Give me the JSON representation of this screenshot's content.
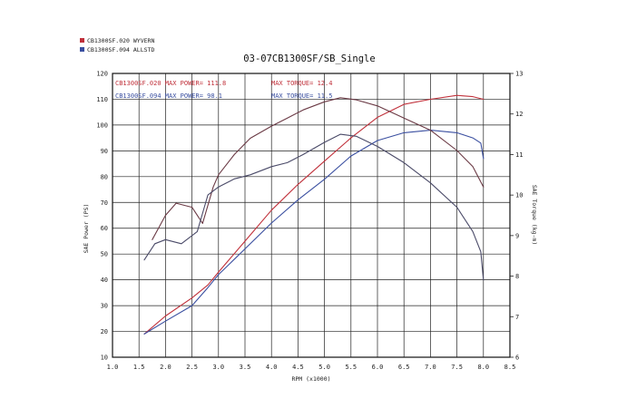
{
  "chart_data": {
    "type": "line",
    "title": "03-07CB1300SF/SB_Single",
    "xlabel": "RPM (x1000)",
    "ylabel": "SAE Power (PS)",
    "y2label": "SAE Torque (kg-m)",
    "xlim": [
      1.0,
      8.5
    ],
    "ylim": [
      10,
      120
    ],
    "y2lim": [
      6,
      13
    ],
    "x_ticks": [
      "1.0",
      "1.5",
      "2.0",
      "2.5",
      "3.0",
      "3.5",
      "4.0",
      "4.5",
      "5.0",
      "5.5",
      "6.0",
      "6.5",
      "7.0",
      "7.5",
      "8.0",
      "8.5"
    ],
    "y_ticks": [
      "10",
      "20",
      "30",
      "40",
      "50",
      "60",
      "70",
      "80",
      "90",
      "100",
      "110",
      "120"
    ],
    "y2_ticks": [
      "6",
      "7",
      "8",
      "9",
      "10",
      "11",
      "12",
      "13"
    ],
    "grid": true,
    "legend_position": "top-left",
    "legend": [
      {
        "label": "CB1300SF.020  WYVERN",
        "color": "#c0303a"
      },
      {
        "label": "CB1300SF.094  ALLSTD",
        "color": "#3a4fa0"
      }
    ],
    "annotations": [
      {
        "text": "CB1300SF.020  MAX POWER= 111.8",
        "color": "#c0303a"
      },
      {
        "text": "MAX TORQUE= 12.4",
        "color": "#c0303a"
      },
      {
        "text": "CB1300SF.094  MAX POWER= 98.1",
        "color": "#3a4fa0"
      },
      {
        "text": "MAX TORQUE= 11.5",
        "color": "#3a4fa0"
      }
    ],
    "series": [
      {
        "name": "CB1300SF.020  WYVERN",
        "measure": "power",
        "axis": "left",
        "color": "#c0303a",
        "x": [
          1.6,
          2.0,
          2.5,
          2.8,
          3.0,
          3.5,
          4.0,
          4.5,
          5.0,
          5.5,
          6.0,
          6.5,
          7.0,
          7.5,
          7.8,
          8.0
        ],
        "y": [
          19,
          26,
          33,
          38,
          43,
          55,
          67,
          77,
          86,
          95,
          103,
          108,
          110,
          111.5,
          111,
          110
        ]
      },
      {
        "name": "CB1300SF.094  ALLSTD",
        "measure": "power",
        "axis": "left",
        "color": "#3a4fa0",
        "x": [
          1.6,
          2.0,
          2.5,
          2.8,
          3.0,
          3.5,
          4.0,
          4.5,
          5.0,
          5.5,
          6.0,
          6.5,
          7.0,
          7.5,
          7.8,
          7.95,
          8.0
        ],
        "y": [
          19,
          24,
          30,
          37,
          42,
          52,
          62,
          71,
          79,
          88,
          94,
          97,
          98,
          97,
          95,
          93,
          87
        ]
      },
      {
        "name": "CB1300SF.020  WYVERN",
        "measure": "torque",
        "axis": "right",
        "color": "#6b3a45",
        "x": [
          1.75,
          2.0,
          2.2,
          2.5,
          2.7,
          2.9,
          3.0,
          3.3,
          3.6,
          4.0,
          4.3,
          4.6,
          5.0,
          5.3,
          5.6,
          6.0,
          6.5,
          7.0,
          7.5,
          7.8,
          8.0
        ],
        "y": [
          8.9,
          9.5,
          9.8,
          9.7,
          9.3,
          10.2,
          10.5,
          11.0,
          11.4,
          11.7,
          11.9,
          12.1,
          12.3,
          12.4,
          12.35,
          12.2,
          11.9,
          11.6,
          11.1,
          10.7,
          10.2
        ]
      },
      {
        "name": "CB1300SF.094  ALLSTD",
        "measure": "torque",
        "axis": "right",
        "color": "#4a4a68",
        "x": [
          1.6,
          1.8,
          2.0,
          2.3,
          2.6,
          2.8,
          3.0,
          3.3,
          3.6,
          4.0,
          4.3,
          4.6,
          5.0,
          5.3,
          5.6,
          6.0,
          6.5,
          7.0,
          7.5,
          7.8,
          7.95,
          8.0
        ],
        "y": [
          8.4,
          8.8,
          8.9,
          8.8,
          9.1,
          10.0,
          10.2,
          10.4,
          10.5,
          10.7,
          10.8,
          11.0,
          11.3,
          11.5,
          11.45,
          11.2,
          10.8,
          10.3,
          9.7,
          9.1,
          8.6,
          7.9
        ]
      }
    ]
  }
}
